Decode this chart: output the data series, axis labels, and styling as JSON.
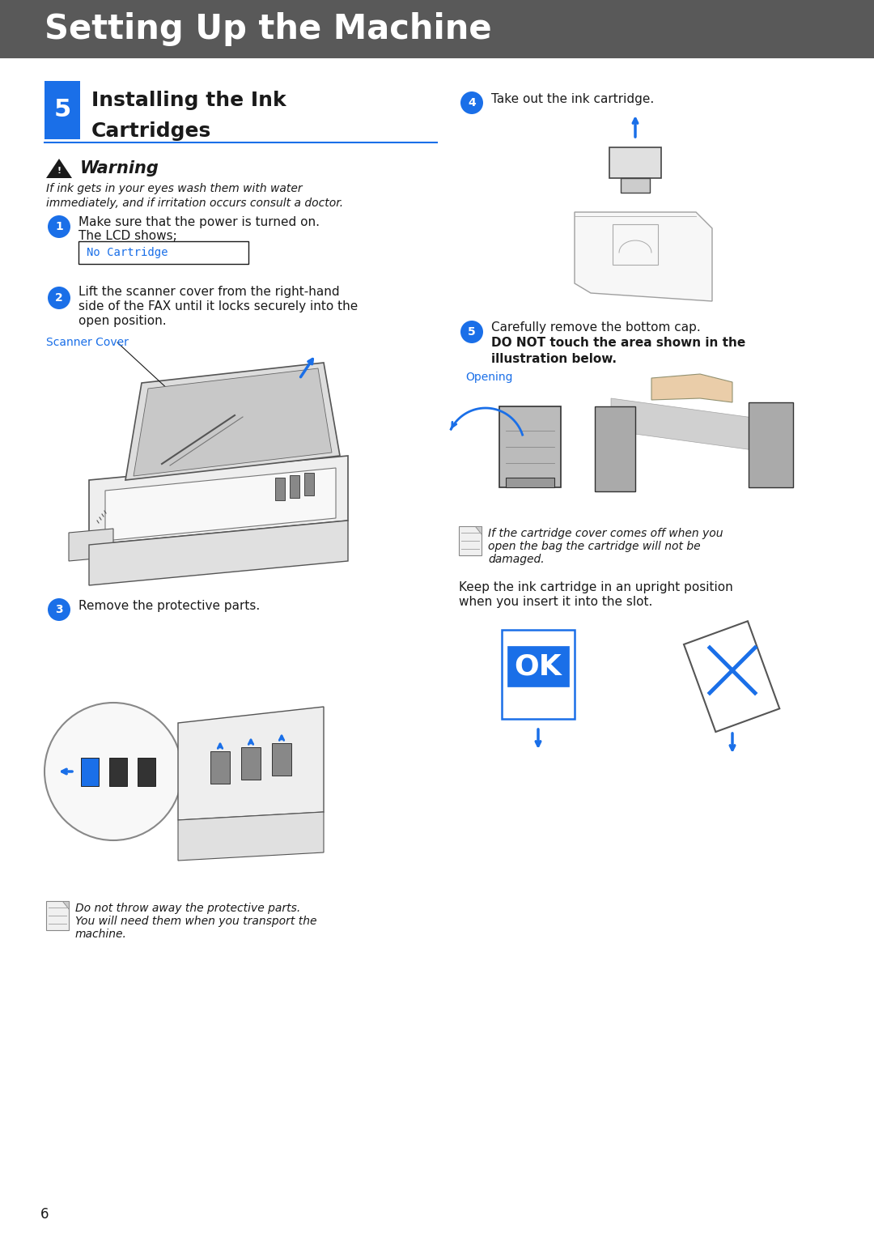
{
  "header_bg": "#595959",
  "header_text": "Setting Up the Machine",
  "header_text_color": "#ffffff",
  "page_bg": "#ffffff",
  "blue": "#1a6fe8",
  "section_num": "5",
  "section_title_line1": "Installing the Ink",
  "section_title_line2": "Cartridges",
  "warning_title": "Warning",
  "warning_body_line1": "If ink gets in your eyes wash them with water",
  "warning_body_line2": "immediately, and if irritation occurs consult a doctor.",
  "step1_line1": "Make sure that the power is turned on.",
  "step1_line2": "The LCD shows;",
  "lcd_text": "No Cartridge",
  "step2_line1": "Lift the scanner cover from the right-hand",
  "step2_line2": "side of the FAX until it locks securely into the",
  "step2_line3": "open position.",
  "scanner_cover_label": "Scanner Cover",
  "step3_text": "Remove the protective parts.",
  "note3_line1": "Do not throw away the protective parts.",
  "note3_line2": "You will need them when you transport the",
  "note3_line3": "machine.",
  "step4_text": "Take out the ink cartridge.",
  "step5_line1": "Carefully remove the bottom cap.",
  "step5_bold1": "DO NOT touch the area shown in the",
  "step5_bold2": "illustration below.",
  "opening_label": "Opening",
  "note5_line1": "If the cartridge cover comes off when you",
  "note5_line2": "open the bag the cartridge will not be",
  "note5_line3": "damaged.",
  "upright_line1": "Keep the ink cartridge in an upright position",
  "upright_line2": "when you insert it into the slot.",
  "page_number": "6",
  "dark_gray": "#444444",
  "mid_gray": "#888888",
  "light_gray": "#cccccc",
  "lighter_gray": "#e8e8e8"
}
